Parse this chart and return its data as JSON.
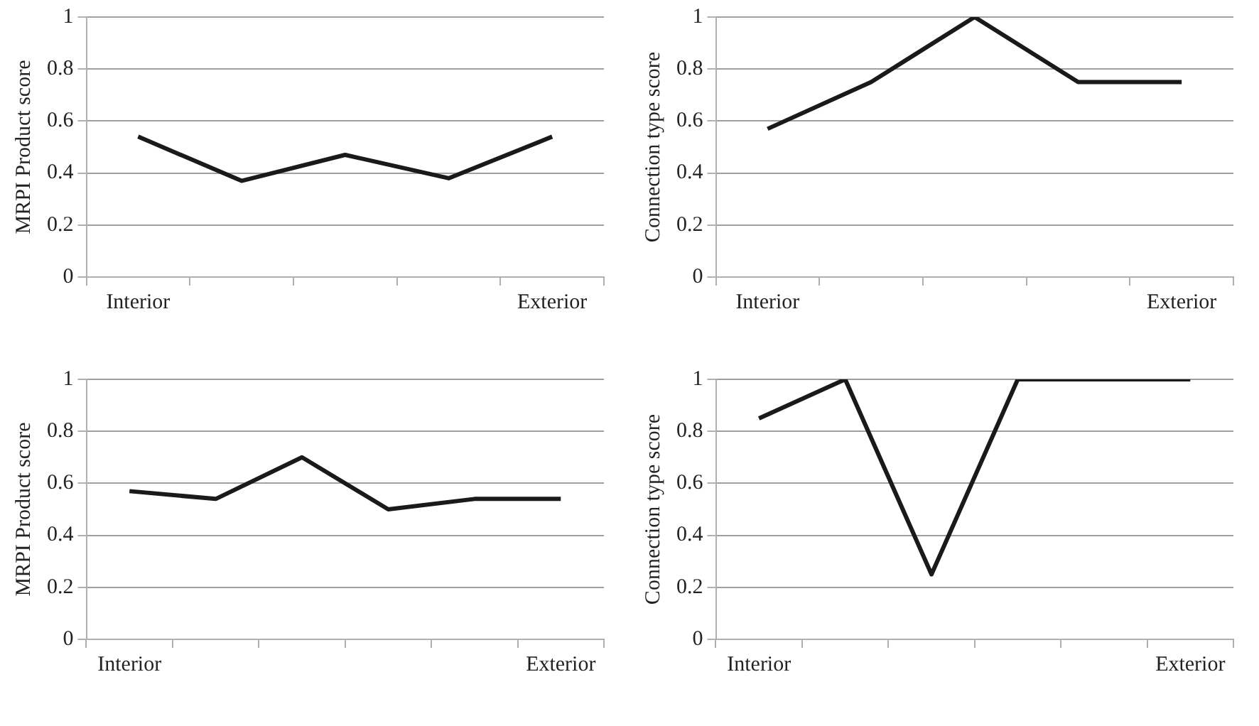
{
  "chart_data": [
    {
      "type": "line",
      "ylabel": "MRPI Product score",
      "categories": [
        "Interior",
        null,
        null,
        null,
        "Exterior"
      ],
      "series": [
        {
          "color": "#1a1a1a",
          "values": [
            0.54,
            0.37,
            0.47,
            0.38,
            0.54
          ]
        }
      ],
      "ylim": [
        0,
        1
      ],
      "yticks": [
        0,
        0.2,
        0.4,
        0.6,
        0.8,
        1
      ],
      "grid": "y",
      "legend": false,
      "marker": "none",
      "line_style": "solid"
    },
    {
      "type": "line",
      "ylabel": "Connection type score",
      "categories": [
        "Interior",
        null,
        null,
        null,
        "Exterior"
      ],
      "series": [
        {
          "color": "#1a1a1a",
          "values": [
            0.57,
            0.75,
            1,
            0.75,
            0.75
          ]
        }
      ],
      "ylim": [
        0,
        1
      ],
      "yticks": [
        0,
        0.2,
        0.4,
        0.6,
        0.8,
        1
      ],
      "grid": "y",
      "legend": false,
      "marker": "none",
      "line_style": "solid"
    },
    {
      "type": "line",
      "ylabel": "MRPI Product score",
      "categories": [
        "Interior",
        null,
        null,
        null,
        null,
        "Exterior"
      ],
      "series": [
        {
          "color": "#1a1a1a",
          "values": [
            0.57,
            0.54,
            0.7,
            0.5,
            0.54,
            0.54
          ]
        }
      ],
      "ylim": [
        0,
        1
      ],
      "yticks": [
        0,
        0.2,
        0.4,
        0.6,
        0.8,
        1
      ],
      "grid": "y",
      "legend": false,
      "marker": "none",
      "line_style": "solid"
    },
    {
      "type": "line",
      "ylabel": "Connection type score",
      "categories": [
        "Interior",
        null,
        null,
        null,
        null,
        "Exterior"
      ],
      "series": [
        {
          "color": "#1a1a1a",
          "values": [
            0.85,
            1,
            0.25,
            1,
            1,
            1
          ]
        }
      ],
      "ylim": [
        0,
        1
      ],
      "yticks": [
        0,
        0.2,
        0.4,
        0.6,
        0.8,
        1
      ],
      "grid": "y",
      "legend": false,
      "marker": "none",
      "line_style": "solid"
    }
  ]
}
